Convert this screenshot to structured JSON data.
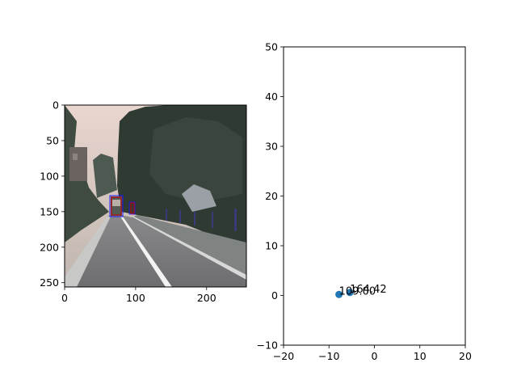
{
  "chart_data": [
    {
      "type": "image",
      "image_description": "dashcam road scene: trees left and right, paved road with white lane markings, truck ahead with detection boxes",
      "xlim": [
        0,
        256
      ],
      "ylim": [
        256,
        0
      ],
      "xticks": [
        0,
        100,
        200
      ],
      "yticks": [
        0,
        50,
        100,
        150,
        200,
        250
      ],
      "detection_box_colors": [
        "#1a1aff",
        "#cc0000"
      ]
    },
    {
      "type": "scatter",
      "xlim": [
        -20,
        20
      ],
      "ylim": [
        -10,
        50
      ],
      "xticks": [
        -20,
        -10,
        0,
        10,
        20
      ],
      "yticks": [
        -10,
        0,
        10,
        20,
        30,
        40,
        50
      ],
      "points": [
        {
          "x": -7.8,
          "y": 0.2,
          "label": "109.00"
        },
        {
          "x": -5.4,
          "y": 0.6,
          "label": "164.42"
        }
      ],
      "marker_color": "#1f77b4",
      "grid": false
    }
  ]
}
